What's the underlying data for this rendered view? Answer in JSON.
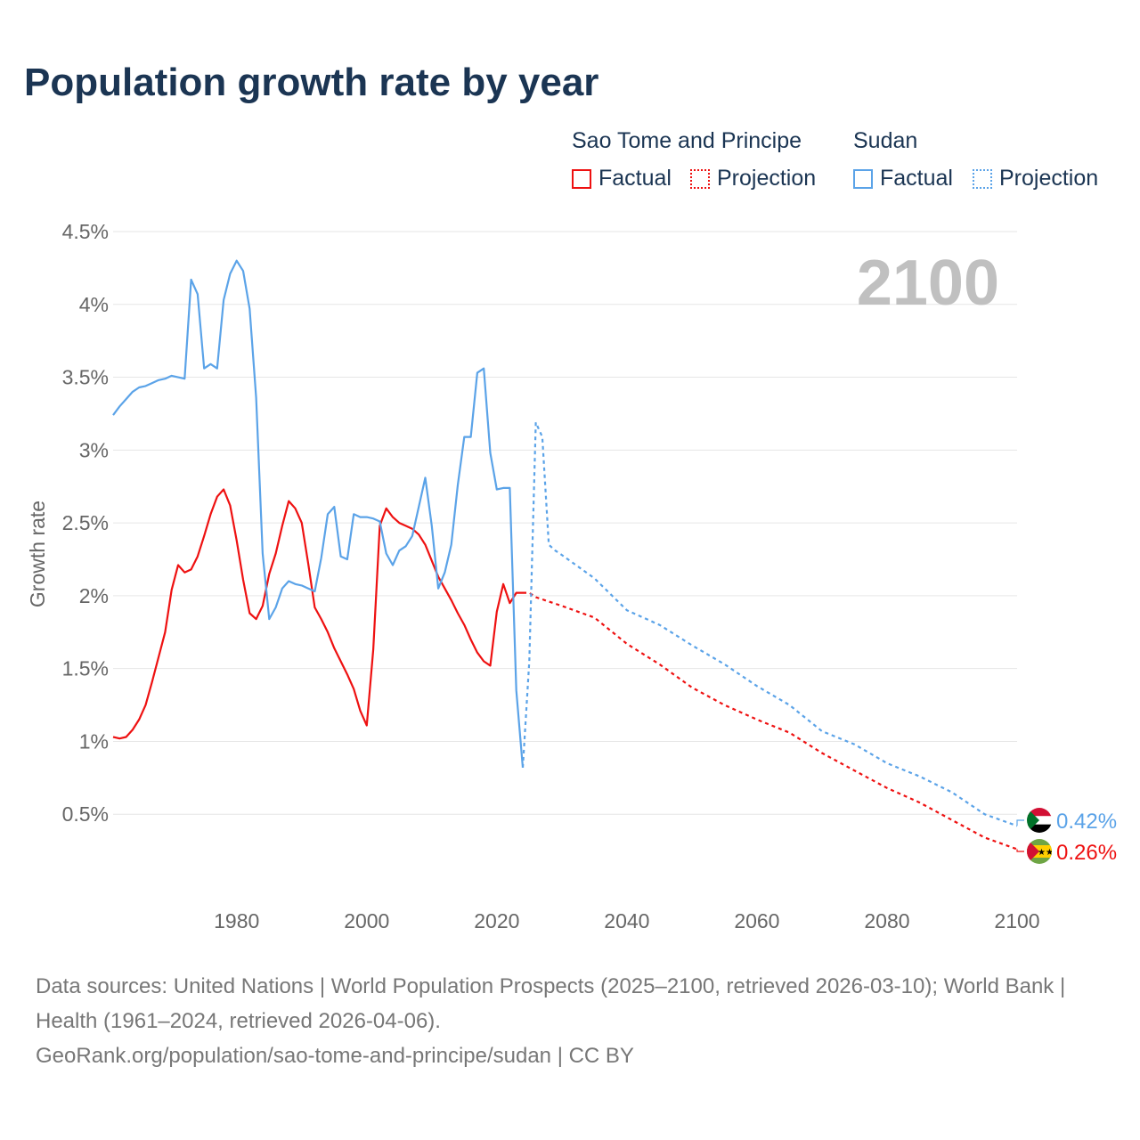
{
  "chart_data": {
    "type": "line",
    "title": "Population growth rate by year",
    "ylabel": "Growth rate",
    "xlabel": "",
    "xlim": [
      1961,
      2100
    ],
    "ylim": [
      0,
      4.5
    ],
    "x_ticks": [
      1980,
      2000,
      2020,
      2040,
      2060,
      2080,
      2100
    ],
    "x_tick_labels": [
      "1980",
      "2000",
      "2020",
      "2040",
      "2060",
      "2080",
      "2100"
    ],
    "y_ticks": [
      0.5,
      1,
      1.5,
      2,
      2.5,
      3,
      3.5,
      4,
      4.5
    ],
    "y_tick_labels": [
      "0.5%",
      "1%",
      "1.5%",
      "2%",
      "2.5%",
      "3%",
      "3.5%",
      "4%",
      "4.5%"
    ],
    "grid": true,
    "year_watermark": "2100",
    "legend": {
      "groups": [
        {
          "name": "Sao Tome and Principe",
          "factual": "Factual",
          "projection": "Projection"
        },
        {
          "name": "Sudan",
          "factual": "Factual",
          "projection": "Projection"
        }
      ],
      "placement": "top-right"
    },
    "series": [
      {
        "name": "Sao Tome and Principe",
        "color": "#ee1111",
        "end_label": "0.26%",
        "factual_start_year": 1961,
        "factual": [
          1.03,
          1.02,
          1.03,
          1.08,
          1.15,
          1.25,
          1.41,
          1.58,
          1.75,
          2.04,
          2.21,
          2.16,
          2.18,
          2.27,
          2.41,
          2.56,
          2.68,
          2.73,
          2.62,
          2.38,
          2.11,
          1.88,
          1.84,
          1.93,
          2.15,
          2.29,
          2.48,
          2.65,
          2.6,
          2.5,
          2.22,
          1.92,
          1.84,
          1.75,
          1.64,
          1.55,
          1.46,
          1.36,
          1.21,
          1.11,
          1.63,
          2.48,
          2.6,
          2.54,
          2.5,
          2.48,
          2.46,
          2.42,
          2.35,
          2.24,
          2.13,
          2.05,
          1.97,
          1.88,
          1.8,
          1.7,
          1.61,
          1.55,
          1.52,
          1.89,
          2.08,
          1.95,
          2.02,
          2.02
        ],
        "projection": [
          [
            2024,
            2.02
          ],
          [
            2025,
            2.02
          ],
          [
            2026,
            1.99
          ],
          [
            2030,
            1.93
          ],
          [
            2035,
            1.85
          ],
          [
            2040,
            1.67
          ],
          [
            2045,
            1.53
          ],
          [
            2050,
            1.37
          ],
          [
            2055,
            1.25
          ],
          [
            2060,
            1.15
          ],
          [
            2065,
            1.06
          ],
          [
            2070,
            0.92
          ],
          [
            2075,
            0.8
          ],
          [
            2080,
            0.68
          ],
          [
            2085,
            0.58
          ],
          [
            2090,
            0.46
          ],
          [
            2095,
            0.34
          ],
          [
            2100,
            0.26
          ]
        ]
      },
      {
        "name": "Sudan",
        "color": "#5ba3e8",
        "end_label": "0.42%",
        "factual_start_year": 1961,
        "factual": [
          3.24,
          3.3,
          3.35,
          3.4,
          3.43,
          3.44,
          3.46,
          3.48,
          3.49,
          3.51,
          3.5,
          3.49,
          4.17,
          4.07,
          3.56,
          3.59,
          3.56,
          4.03,
          4.21,
          4.3,
          4.23,
          3.97,
          3.36,
          2.29,
          1.84,
          1.92,
          2.05,
          2.1,
          2.08,
          2.07,
          2.05,
          2.03,
          2.26,
          2.56,
          2.61,
          2.27,
          2.25,
          2.56,
          2.54,
          2.54,
          2.53,
          2.51,
          2.29,
          2.21,
          2.31,
          2.34,
          2.41,
          2.61,
          2.81,
          2.48,
          2.05,
          2.16,
          2.35,
          2.76,
          3.09,
          3.09,
          3.53,
          3.56,
          2.98,
          2.73,
          2.74,
          2.74,
          1.35,
          0.82
        ],
        "projection": [
          [
            2024,
            0.82
          ],
          [
            2025,
            1.55
          ],
          [
            2026,
            3.19
          ],
          [
            2027,
            3.09
          ],
          [
            2028,
            2.35
          ],
          [
            2029,
            2.31
          ],
          [
            2030,
            2.28
          ],
          [
            2035,
            2.12
          ],
          [
            2040,
            1.9
          ],
          [
            2045,
            1.8
          ],
          [
            2050,
            1.66
          ],
          [
            2055,
            1.53
          ],
          [
            2060,
            1.38
          ],
          [
            2065,
            1.25
          ],
          [
            2070,
            1.07
          ],
          [
            2075,
            0.98
          ],
          [
            2080,
            0.85
          ],
          [
            2085,
            0.76
          ],
          [
            2090,
            0.65
          ],
          [
            2095,
            0.5
          ],
          [
            2100,
            0.42
          ]
        ]
      }
    ]
  },
  "footer": {
    "sources": "Data sources: United Nations | World Population Prospects (2025–2100, retrieved 2026-03-10); World Bank | Health (1961–2024, retrieved 2026-04-06).",
    "link": "GeoRank.org/population/sao-tome-and-principe/sudan | CC BY"
  }
}
